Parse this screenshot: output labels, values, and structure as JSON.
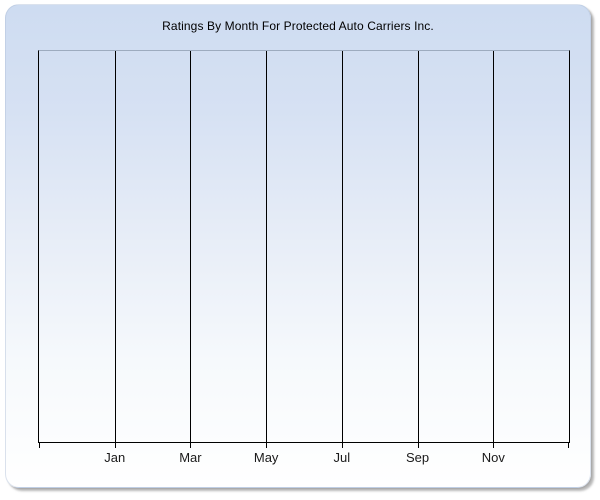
{
  "chart": {
    "title": "Ratings By Month For Protected Auto Carriers Inc."
  },
  "chart_data": {
    "type": "line",
    "title": "Ratings By Month For Protected Auto Carriers Inc.",
    "x_tick_labels": [
      "Jan",
      "Mar",
      "May",
      "Jul",
      "Sep",
      "Nov"
    ],
    "x_gridline_intervals": 7,
    "series": [],
    "y_tick_labels": [],
    "ylim": null,
    "grid": "vertical gridlines only, no horizontal gridlines",
    "legend": "none",
    "plot_is_empty": true
  },
  "colors": {
    "panel_gradient_top": "#cedcf1",
    "panel_gradient_bottom": "#ffffff",
    "plot_top_border": "#9dabbf",
    "axis_and_gridlines": "#000000",
    "title_text": "#000000",
    "tick_label_text": "#1a1a1a",
    "shadow": "#7d7d7d",
    "page_background": "#ffffff"
  }
}
